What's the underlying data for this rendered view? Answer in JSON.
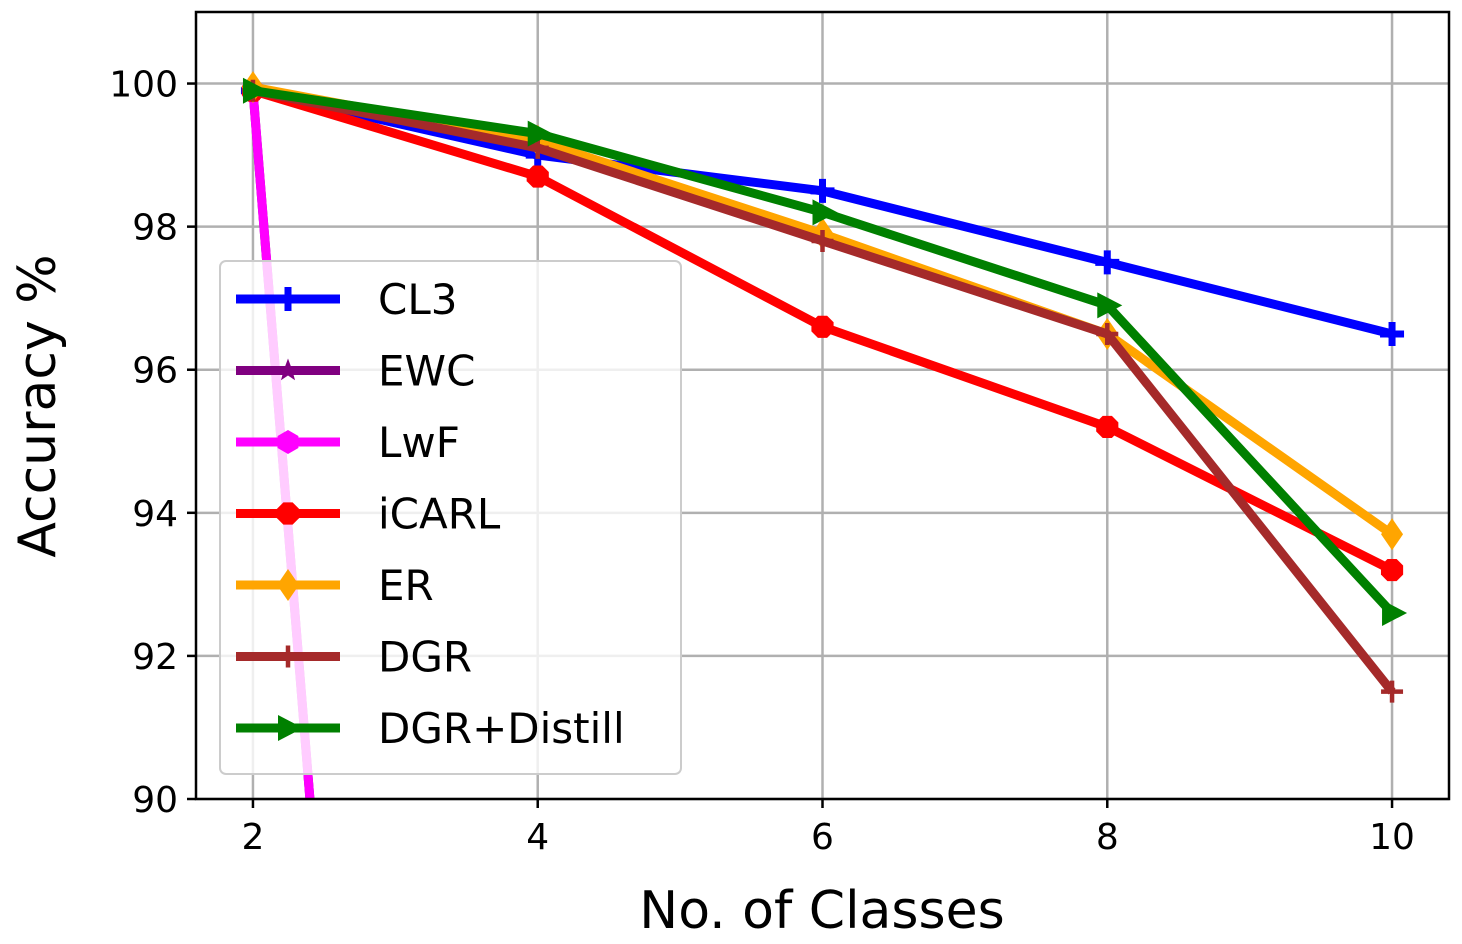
{
  "chart_data": {
    "type": "line",
    "title": "",
    "xlabel": "No. of Classes",
    "ylabel": "Accuracy %",
    "x": [
      2,
      4,
      6,
      8,
      10
    ],
    "xlim": [
      1.6,
      10.4
    ],
    "ylim": [
      90,
      101
    ],
    "xticks": [
      2,
      4,
      6,
      8,
      10
    ],
    "yticks": [
      90,
      92,
      94,
      96,
      98,
      100
    ],
    "grid": true,
    "legend_position": "lower-left",
    "series": [
      {
        "name": "CL3",
        "color": "#0000ff",
        "marker": "plus",
        "x": [
          2,
          4,
          6,
          8,
          10
        ],
        "values": [
          99.9,
          99.0,
          98.5,
          97.5,
          96.5
        ]
      },
      {
        "name": "EWC",
        "color": "#800080",
        "marker": "star",
        "x": [
          2,
          2.4
        ],
        "values": [
          99.9,
          90.0
        ]
      },
      {
        "name": "LwF",
        "color": "#ff00ff",
        "marker": "hexagon",
        "x": [
          2,
          2.4
        ],
        "values": [
          99.9,
          90.0
        ]
      },
      {
        "name": "iCARL",
        "color": "#ff0000",
        "marker": "octagon",
        "x": [
          2,
          4,
          6,
          8,
          10
        ],
        "values": [
          99.9,
          98.7,
          96.6,
          95.2,
          93.2
        ]
      },
      {
        "name": "ER",
        "color": "#ffa500",
        "marker": "diamond",
        "x": [
          2,
          4,
          6,
          8,
          10
        ],
        "values": [
          99.95,
          99.2,
          97.9,
          96.5,
          93.7
        ]
      },
      {
        "name": "DGR",
        "color": "#a52a2a",
        "marker": "thin-plus",
        "x": [
          2,
          4,
          6,
          8,
          10
        ],
        "values": [
          99.9,
          99.1,
          97.8,
          96.5,
          91.5
        ]
      },
      {
        "name": "DGR+Distill",
        "color": "#008000",
        "marker": "triangle-right",
        "x": [
          2,
          4,
          6,
          8,
          10
        ],
        "values": [
          99.9,
          99.3,
          98.2,
          96.9,
          92.6
        ]
      }
    ]
  }
}
